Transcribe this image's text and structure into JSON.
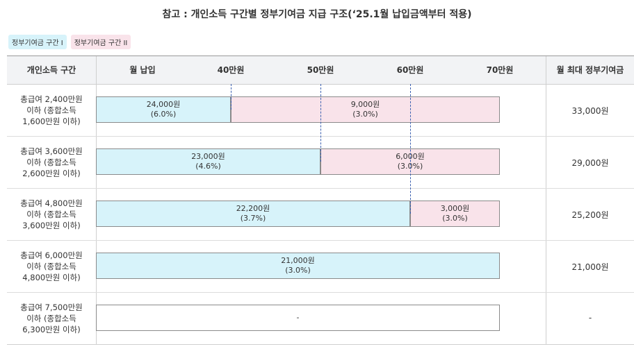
{
  "title": "참고 : 개인소득 구간별 정부기여금 지급 구조(‘25.1월 납입금액부터 적용)",
  "legend": [
    "정부기여금 구간 I",
    "정부기여금 구간 II"
  ],
  "header": {
    "income_col": "개인소득 구간",
    "ticks": [
      "월 납입",
      "40만원",
      "50만원",
      "60만원",
      "70만원"
    ],
    "max_col": "월 최대 정부기여금"
  },
  "rows": [
    {
      "label": [
        "총급여 2,400만원",
        "이하 (종합소득",
        "1,600만원 이하)"
      ],
      "seg1": {
        "amount": "24,000원",
        "rate": "(6.0%)"
      },
      "seg2": {
        "amount": "9,000원",
        "rate": "(3.0%)"
      },
      "threshold": 40,
      "max": "33,000원"
    },
    {
      "label": [
        "총급여 3,600만원",
        "이하 (종합소득",
        "2,600만원 이하)"
      ],
      "seg1": {
        "amount": "23,000원",
        "rate": "(4.6%)"
      },
      "seg2": {
        "amount": "6,000원",
        "rate": "(3.0%)"
      },
      "threshold": 50,
      "max": "29,000원"
    },
    {
      "label": [
        "총급여 4,800만원",
        "이하 (종합소득",
        "3,600만원 이하)"
      ],
      "seg1": {
        "amount": "22,200원",
        "rate": "(3.7%)"
      },
      "seg2": {
        "amount": "3,000원",
        "rate": "(3.0%)"
      },
      "threshold": 60,
      "max": "25,200원"
    },
    {
      "label": [
        "총급여 6,000만원",
        "이하 (종합소득",
        "4,800만원 이하)"
      ],
      "seg1": {
        "amount": "21,000원",
        "rate": "(3.0%)"
      },
      "seg2": null,
      "threshold": 70,
      "max": "21,000원"
    },
    {
      "label": [
        "총급여 7,500만원",
        "이하 (종합소득",
        "6,300만원 이하)"
      ],
      "seg1": {
        "amount": "-",
        "rate": ""
      },
      "seg2": null,
      "threshold": 0,
      "max": "-"
    }
  ]
}
